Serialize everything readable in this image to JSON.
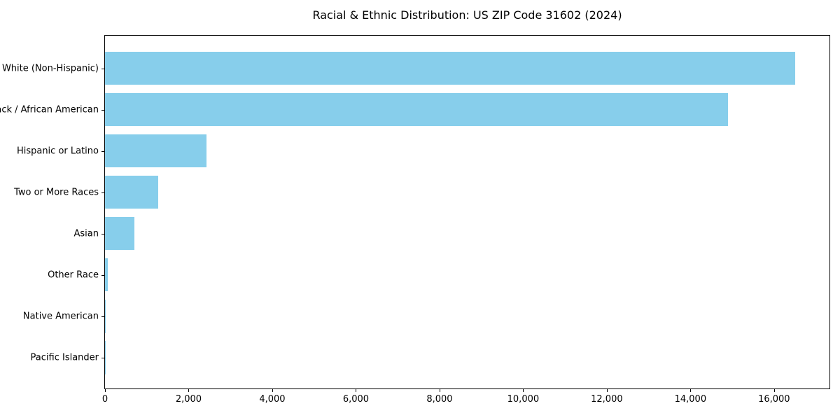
{
  "title": "Racial & Ethnic Distribution: US ZIP Code 31602 (2024)",
  "chart_data": {
    "type": "bar",
    "orientation": "horizontal",
    "title": "Racial & Ethnic Distribution: US ZIP Code 31602 (2024)",
    "xlabel": "",
    "ylabel": "",
    "categories": [
      "White (Non-Hispanic)",
      "Black / African American",
      "Hispanic or Latino",
      "Two or More Races",
      "Asian",
      "Other Race",
      "Native American",
      "Pacific Islander"
    ],
    "values": [
      16500,
      14890,
      2430,
      1280,
      700,
      72,
      20,
      8
    ],
    "xlim": [
      0,
      17325
    ],
    "x_ticks": [
      0,
      2000,
      4000,
      6000,
      8000,
      10000,
      12000,
      14000,
      16000
    ],
    "x_tick_labels": [
      "0",
      "2,000",
      "4,000",
      "6,000",
      "8,000",
      "10,000",
      "12,000",
      "14,000",
      "16,000"
    ],
    "bar_color": "#87CEEB",
    "grid": false,
    "legend": false
  }
}
